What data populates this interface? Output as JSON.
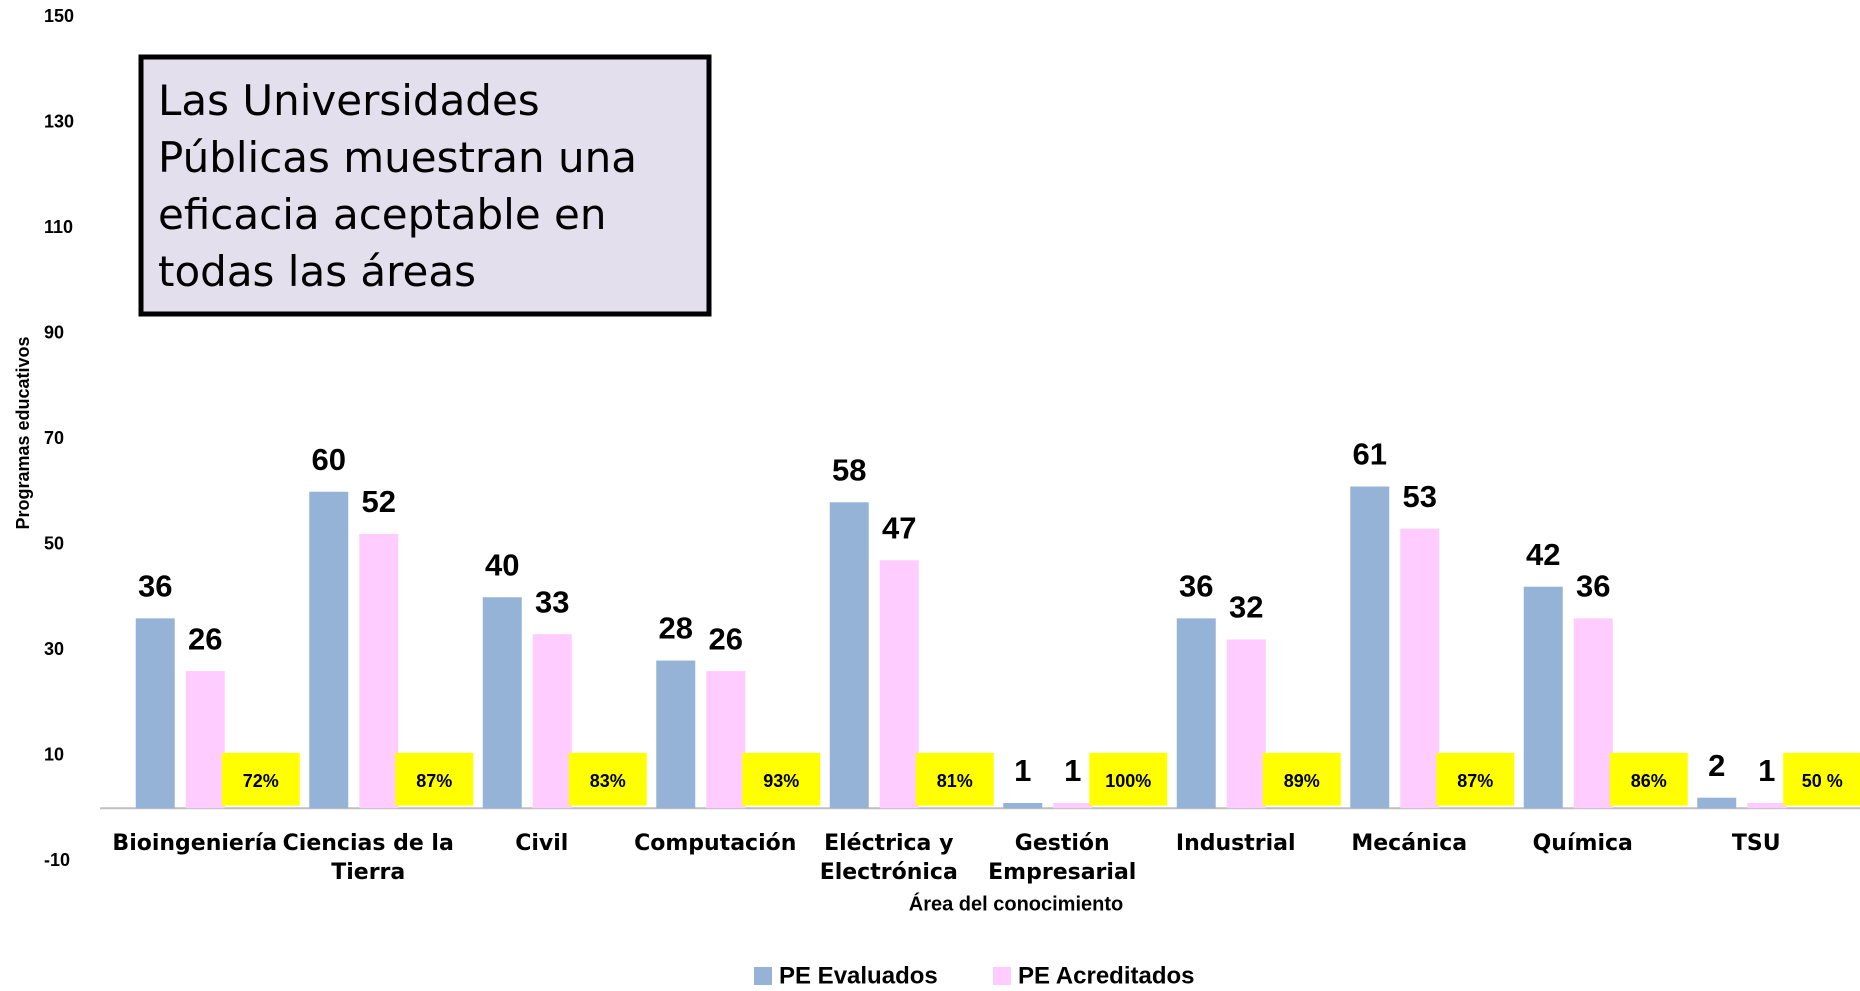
{
  "chart_data": {
    "type": "bar",
    "annotation": "Las Universidades Públicas muestran una eficacia aceptable en todas las áreas",
    "x_label": "Área del conocimiento",
    "y_label": "Programas educativos",
    "categories": [
      "Bioingeniería",
      "Ciencias de la Tierra",
      "Civil",
      "Computación",
      "Eléctrica y Electrónica",
      "Gestión Empresarial",
      "Industrial",
      "Mecánica",
      "Química",
      "TSU"
    ],
    "series": [
      {
        "name": "PE Evaluados",
        "color": "#95b3d7",
        "values": [
          36,
          60,
          40,
          28,
          58,
          1,
          36,
          61,
          42,
          2
        ]
      },
      {
        "name": "PE Acreditados",
        "color": "#ffccff",
        "values": [
          26,
          52,
          33,
          26,
          47,
          1,
          32,
          53,
          36,
          1
        ]
      }
    ],
    "efficiency_labels": [
      "72%",
      "87%",
      "83%",
      "93%",
      "81%",
      "100%",
      "89%",
      "87%",
      "86%",
      "50 %"
    ],
    "ylim": [
      -10,
      150
    ],
    "yticks": [
      -10,
      10,
      30,
      50,
      70,
      90,
      110,
      130,
      150
    ]
  }
}
